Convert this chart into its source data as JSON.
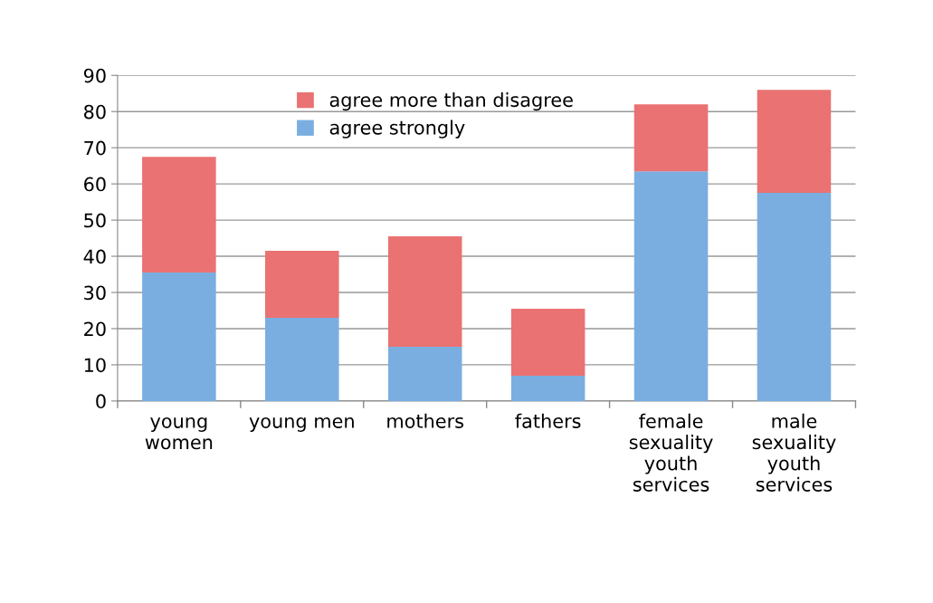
{
  "chart_data": {
    "type": "bar",
    "stacked": true,
    "categories": [
      "young\nwomen",
      "young men",
      "mothers",
      "fathers",
      "female\nsexuality\nyouth\nservices",
      "male\nsexuality\nyouth\nservices"
    ],
    "series": [
      {
        "name": "agree strongly",
        "color": "#7aaee0",
        "values": [
          35.5,
          23,
          15,
          7,
          63.5,
          57.5
        ]
      },
      {
        "name": "agree more than disagree",
        "color": "#ea7272",
        "values": [
          32,
          18.5,
          30.5,
          18.5,
          18.5,
          28.5
        ]
      }
    ],
    "ylim": [
      0,
      90
    ],
    "yticks": [
      0,
      10,
      20,
      30,
      40,
      50,
      60,
      70,
      80,
      90
    ],
    "grid": "y",
    "legend": "top"
  }
}
